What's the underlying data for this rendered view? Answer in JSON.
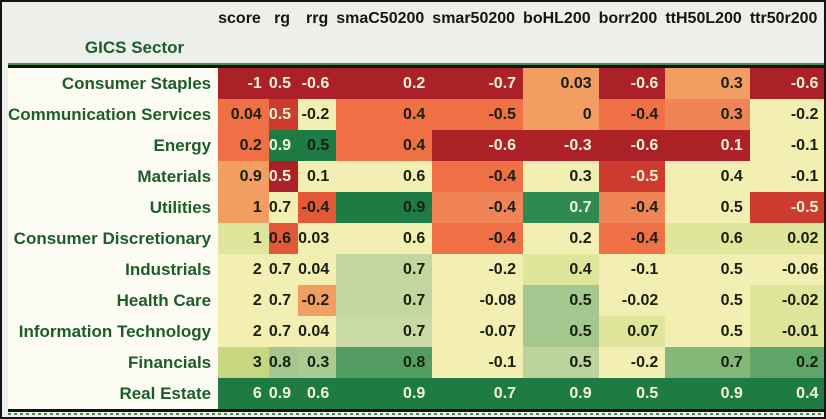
{
  "table": {
    "index_header": "GICS Sector",
    "columns": [
      "score",
      "rg",
      "rrg",
      "smaC50200",
      "smar50200",
      "boHL200",
      "borr200",
      "ttH50L200",
      "ttr50r200"
    ],
    "rows": [
      {
        "label": "Consumer Staples",
        "cells": [
          {
            "v": "-1",
            "bg": "#ab2127",
            "fg": "#f8f4d8"
          },
          {
            "v": "0.5",
            "bg": "#ab2127",
            "fg": "#f8f4d8"
          },
          {
            "v": "-0.6",
            "bg": "#ab2127",
            "fg": "#f8f4d8"
          },
          {
            "v": "0.2",
            "bg": "#ab2127",
            "fg": "#f8f4d8"
          },
          {
            "v": "-0.7",
            "bg": "#ab2127",
            "fg": "#f8f4d8"
          },
          {
            "v": "0.03",
            "bg": "#f29e63",
            "fg": "#17200f"
          },
          {
            "v": "-0.6",
            "bg": "#ab2127",
            "fg": "#f8f4d8"
          },
          {
            "v": "0.3",
            "bg": "#f29e63",
            "fg": "#17200f"
          },
          {
            "v": "-0.6",
            "bg": "#ab2127",
            "fg": "#f8f4d8"
          }
        ]
      },
      {
        "label": "Communication Services",
        "cells": [
          {
            "v": "0.04",
            "bg": "#ee7044",
            "fg": "#17200f"
          },
          {
            "v": "0.5",
            "bg": "#cc3b2d",
            "fg": "#f8f4d8"
          },
          {
            "v": "-0.2",
            "bg": "#f3eeb2",
            "fg": "#17200f"
          },
          {
            "v": "0.4",
            "bg": "#ee7044",
            "fg": "#17200f"
          },
          {
            "v": "-0.5",
            "bg": "#ee7044",
            "fg": "#17200f"
          },
          {
            "v": "0",
            "bg": "#f29e63",
            "fg": "#17200f"
          },
          {
            "v": "-0.4",
            "bg": "#ee7044",
            "fg": "#17200f"
          },
          {
            "v": "0.3",
            "bg": "#ef8456",
            "fg": "#17200f"
          },
          {
            "v": "-0.2",
            "bg": "#f3eeb2",
            "fg": "#17200f"
          }
        ]
      },
      {
        "label": "Energy",
        "cells": [
          {
            "v": "0.2",
            "bg": "#ee7044",
            "fg": "#17200f"
          },
          {
            "v": "0.9",
            "bg": "#1e7b44",
            "fg": "#f8f4d8"
          },
          {
            "v": "0.5",
            "bg": "#1e7b44",
            "fg": "#17200f"
          },
          {
            "v": "0.4",
            "bg": "#ee7044",
            "fg": "#17200f"
          },
          {
            "v": "-0.6",
            "bg": "#ab2127",
            "fg": "#f8f4d8"
          },
          {
            "v": "-0.3",
            "bg": "#ab2127",
            "fg": "#f8f4d8"
          },
          {
            "v": "-0.6",
            "bg": "#ab2127",
            "fg": "#f8f4d8"
          },
          {
            "v": "0.1",
            "bg": "#ab2127",
            "fg": "#f8f4d8"
          },
          {
            "v": "-0.1",
            "bg": "#f3eeb2",
            "fg": "#17200f"
          }
        ]
      },
      {
        "label": "Materials",
        "cells": [
          {
            "v": "0.9",
            "bg": "#f29e63",
            "fg": "#17200f"
          },
          {
            "v": "0.5",
            "bg": "#ab2127",
            "fg": "#f8f4d8"
          },
          {
            "v": "0.1",
            "bg": "#f3eeb2",
            "fg": "#17200f"
          },
          {
            "v": "0.6",
            "bg": "#f3eeb2",
            "fg": "#17200f"
          },
          {
            "v": "-0.4",
            "bg": "#ee7044",
            "fg": "#17200f"
          },
          {
            "v": "0.3",
            "bg": "#f3eeb2",
            "fg": "#17200f"
          },
          {
            "v": "-0.5",
            "bg": "#cc3b2d",
            "fg": "#f8f4d8"
          },
          {
            "v": "0.4",
            "bg": "#f3eeb2",
            "fg": "#17200f"
          },
          {
            "v": "-0.1",
            "bg": "#f3eeb2",
            "fg": "#17200f"
          }
        ]
      },
      {
        "label": "Utilities",
        "cells": [
          {
            "v": "1",
            "bg": "#f29e63",
            "fg": "#17200f"
          },
          {
            "v": "0.7",
            "bg": "#f3eeb2",
            "fg": "#17200f"
          },
          {
            "v": "-0.4",
            "bg": "#e4583a",
            "fg": "#17200f"
          },
          {
            "v": "0.9",
            "bg": "#1e7b44",
            "fg": "#17200f"
          },
          {
            "v": "-0.4",
            "bg": "#ef8456",
            "fg": "#17200f"
          },
          {
            "v": "0.7",
            "bg": "#2f8a51",
            "fg": "#f8f4d8"
          },
          {
            "v": "-0.4",
            "bg": "#ef8456",
            "fg": "#17200f"
          },
          {
            "v": "0.5",
            "bg": "#f3eeb2",
            "fg": "#17200f"
          },
          {
            "v": "-0.5",
            "bg": "#cc3b2d",
            "fg": "#f8f4d8"
          }
        ]
      },
      {
        "label": "Consumer Discretionary",
        "cells": [
          {
            "v": "1",
            "bg": "#dfe69c",
            "fg": "#17200f"
          },
          {
            "v": "0.6",
            "bg": "#e4583a",
            "fg": "#17200f"
          },
          {
            "v": "0.03",
            "bg": "#f3eeb2",
            "fg": "#17200f"
          },
          {
            "v": "0.6",
            "bg": "#f3eeb2",
            "fg": "#17200f"
          },
          {
            "v": "-0.4",
            "bg": "#ee7044",
            "fg": "#17200f"
          },
          {
            "v": "0.2",
            "bg": "#f3eeb2",
            "fg": "#17200f"
          },
          {
            "v": "-0.4",
            "bg": "#ee7044",
            "fg": "#17200f"
          },
          {
            "v": "0.6",
            "bg": "#dfe69c",
            "fg": "#17200f"
          },
          {
            "v": "0.02",
            "bg": "#dfe69c",
            "fg": "#17200f"
          }
        ]
      },
      {
        "label": "Industrials",
        "cells": [
          {
            "v": "2",
            "bg": "#f3eeb2",
            "fg": "#17200f"
          },
          {
            "v": "0.7",
            "bg": "#f3eeb2",
            "fg": "#17200f"
          },
          {
            "v": "0.04",
            "bg": "#f3eeb2",
            "fg": "#17200f"
          },
          {
            "v": "0.7",
            "bg": "#c3d69f",
            "fg": "#17200f"
          },
          {
            "v": "-0.2",
            "bg": "#f3eeb2",
            "fg": "#17200f"
          },
          {
            "v": "0.4",
            "bg": "#dfe69c",
            "fg": "#17200f"
          },
          {
            "v": "-0.1",
            "bg": "#f3eeb2",
            "fg": "#17200f"
          },
          {
            "v": "0.5",
            "bg": "#f3eeb2",
            "fg": "#17200f"
          },
          {
            "v": "-0.06",
            "bg": "#f3eeb2",
            "fg": "#17200f"
          }
        ]
      },
      {
        "label": "Health Care",
        "cells": [
          {
            "v": "2",
            "bg": "#f3eeb2",
            "fg": "#17200f"
          },
          {
            "v": "0.7",
            "bg": "#f3eeb2",
            "fg": "#17200f"
          },
          {
            "v": "-0.2",
            "bg": "#f29e63",
            "fg": "#17200f"
          },
          {
            "v": "0.7",
            "bg": "#c3d69f",
            "fg": "#17200f"
          },
          {
            "v": "-0.08",
            "bg": "#f3eeb2",
            "fg": "#17200f"
          },
          {
            "v": "0.5",
            "bg": "#a3c78e",
            "fg": "#17200f"
          },
          {
            "v": "-0.02",
            "bg": "#f3eeb2",
            "fg": "#17200f"
          },
          {
            "v": "0.5",
            "bg": "#f3eeb2",
            "fg": "#17200f"
          },
          {
            "v": "-0.02",
            "bg": "#dfe69c",
            "fg": "#17200f"
          }
        ]
      },
      {
        "label": "Information Technology",
        "cells": [
          {
            "v": "2",
            "bg": "#f3eeb2",
            "fg": "#17200f"
          },
          {
            "v": "0.7",
            "bg": "#f3eeb2",
            "fg": "#17200f"
          },
          {
            "v": "0.04",
            "bg": "#f3eeb2",
            "fg": "#17200f"
          },
          {
            "v": "0.7",
            "bg": "#c9daa6",
            "fg": "#17200f"
          },
          {
            "v": "-0.07",
            "bg": "#f3eeb2",
            "fg": "#17200f"
          },
          {
            "v": "0.5",
            "bg": "#a3c78e",
            "fg": "#17200f"
          },
          {
            "v": "0.07",
            "bg": "#dfe69c",
            "fg": "#17200f"
          },
          {
            "v": "0.5",
            "bg": "#f3eeb2",
            "fg": "#17200f"
          },
          {
            "v": "-0.01",
            "bg": "#dfe69c",
            "fg": "#17200f"
          }
        ]
      },
      {
        "label": "Financials",
        "cells": [
          {
            "v": "3",
            "bg": "#c6d77f",
            "fg": "#17200f"
          },
          {
            "v": "0.8",
            "bg": "#a3c78e",
            "fg": "#17200f"
          },
          {
            "v": "0.3",
            "bg": "#a9cb92",
            "fg": "#17200f"
          },
          {
            "v": "0.8",
            "bg": "#539d63",
            "fg": "#17200f"
          },
          {
            "v": "-0.1",
            "bg": "#f3eeb2",
            "fg": "#17200f"
          },
          {
            "v": "0.5",
            "bg": "#bcd49b",
            "fg": "#17200f"
          },
          {
            "v": "-0.2",
            "bg": "#f3eeb2",
            "fg": "#17200f"
          },
          {
            "v": "0.7",
            "bg": "#85b878",
            "fg": "#17200f"
          },
          {
            "v": "0.2",
            "bg": "#5fa469",
            "fg": "#17200f"
          }
        ]
      },
      {
        "label": "Real Estate",
        "cells": [
          {
            "v": "6",
            "bg": "#1e7b44",
            "fg": "#f8f4d8"
          },
          {
            "v": "0.9",
            "bg": "#1e7b44",
            "fg": "#f8f4d8"
          },
          {
            "v": "0.6",
            "bg": "#1e7b44",
            "fg": "#f8f4d8"
          },
          {
            "v": "0.9",
            "bg": "#1e7b44",
            "fg": "#f8f4d8"
          },
          {
            "v": "0.7",
            "bg": "#1e7b44",
            "fg": "#f8f4d8"
          },
          {
            "v": "0.9",
            "bg": "#1e7b44",
            "fg": "#f8f4d8"
          },
          {
            "v": "0.5",
            "bg": "#1e7b44",
            "fg": "#f8f4d8"
          },
          {
            "v": "0.9",
            "bg": "#1e7b44",
            "fg": "#f8f4d8"
          },
          {
            "v": "0.4",
            "bg": "#1e7b44",
            "fg": "#f8f4d8"
          }
        ]
      }
    ]
  },
  "colors": {
    "frame_border": "#141414",
    "page_background": "#edf0ea",
    "label_background": "#fcfcf3",
    "label_text": "#1d5c2b",
    "header_rule_green": "#4a8c4a",
    "heat_negative": "#ab2127",
    "heat_mid": "#f3eeb2",
    "heat_positive": "#1e7b44"
  },
  "chart_data": {
    "type": "heatmap",
    "title": "",
    "index_label": "GICS Sector",
    "columns": [
      "score",
      "rg",
      "rrg",
      "smaC50200",
      "smar50200",
      "boHL200",
      "borr200",
      "ttH50L200",
      "ttr50r200"
    ],
    "rows": [
      "Consumer Staples",
      "Communication Services",
      "Energy",
      "Materials",
      "Utilities",
      "Consumer Discretionary",
      "Industrials",
      "Health Care",
      "Information Technology",
      "Financials",
      "Real Estate"
    ],
    "values": [
      [
        -1,
        0.5,
        -0.6,
        0.2,
        -0.7,
        0.03,
        -0.6,
        0.3,
        -0.6
      ],
      [
        0.04,
        0.5,
        -0.2,
        0.4,
        -0.5,
        0,
        -0.4,
        0.3,
        -0.2
      ],
      [
        0.2,
        0.9,
        0.5,
        0.4,
        -0.6,
        -0.3,
        -0.6,
        0.1,
        -0.1
      ],
      [
        0.9,
        0.5,
        0.1,
        0.6,
        -0.4,
        0.3,
        -0.5,
        0.4,
        -0.1
      ],
      [
        1,
        0.7,
        -0.4,
        0.9,
        -0.4,
        0.7,
        -0.4,
        0.5,
        -0.5
      ],
      [
        1,
        0.6,
        0.03,
        0.6,
        -0.4,
        0.2,
        -0.4,
        0.6,
        0.02
      ],
      [
        2,
        0.7,
        0.04,
        0.7,
        -0.2,
        0.4,
        -0.1,
        0.5,
        -0.06
      ],
      [
        2,
        0.7,
        -0.2,
        0.7,
        -0.08,
        0.5,
        -0.02,
        0.5,
        -0.02
      ],
      [
        2,
        0.7,
        0.04,
        0.7,
        -0.07,
        0.5,
        0.07,
        0.5,
        -0.01
      ],
      [
        3,
        0.8,
        0.3,
        0.8,
        -0.1,
        0.5,
        -0.2,
        0.7,
        0.2
      ],
      [
        6,
        0.9,
        0.6,
        0.9,
        0.7,
        0.9,
        0.5,
        0.9,
        0.4
      ]
    ],
    "colormap": "red-yellow-green, normalized per column",
    "legend": "none",
    "grid": false
  }
}
